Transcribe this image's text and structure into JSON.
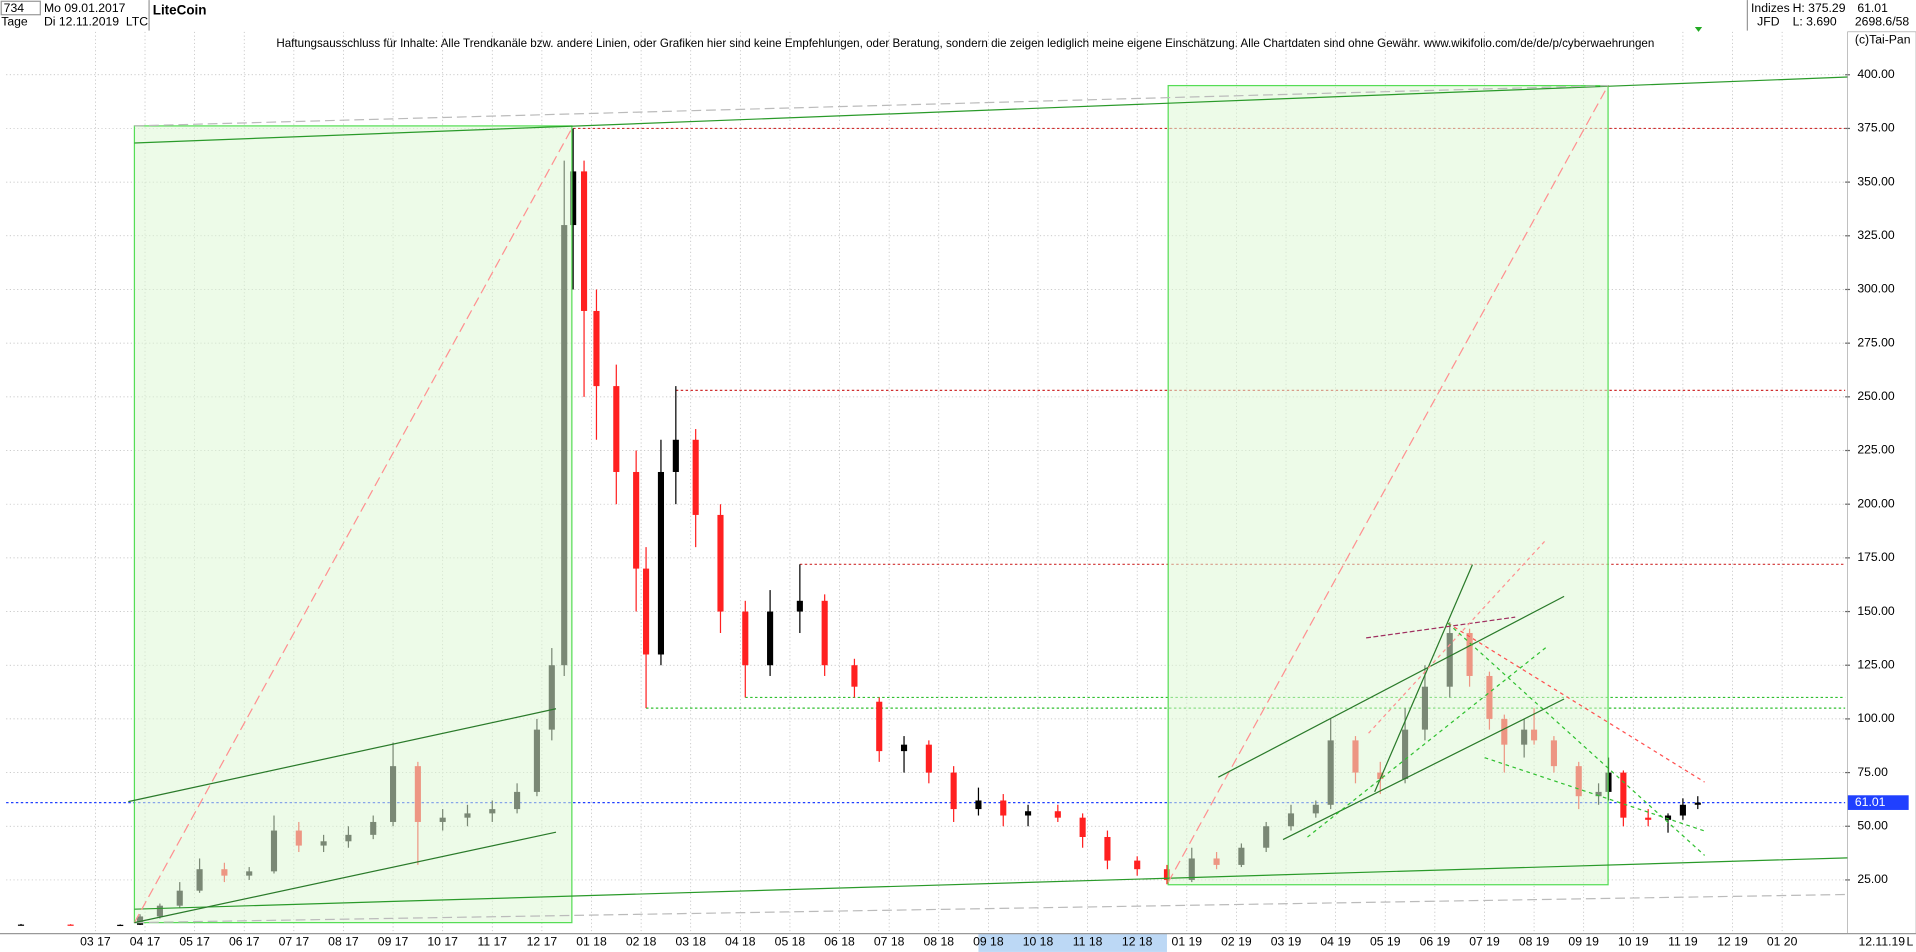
{
  "header": {
    "symbol_count": "734",
    "period": "Tage",
    "start_date": "Mo 09.01.2017",
    "end_date": "Di 12.11.2019",
    "ticker": "LTC",
    "exchange_group": "Indizes",
    "broker": "JFD",
    "high": "H: 375.29",
    "low": "L: 3.690",
    "last": "61.01",
    "counter": "2698.6/58",
    "copyright": "(c)Tai-Pan",
    "current_date": "12.11.19",
    "scale_mode": "L"
  },
  "chart_data": {
    "type": "candlestick",
    "title": "LiteCoin",
    "subtitle": "Haftungsausschluss für Inhalte: Alle Trendkanäle bzw. andere Linien, oder Grafiken hier sind keine Empfehlungen, oder Beratung, sondern die zeigen lediglich meine eigene Einschätzung. Alle Chartdaten sind ohne Gewähr.  www.wikifolio.com/de/de/p/cyberwaehrungen",
    "x": [
      0.5,
      1.5,
      2.5,
      2.9,
      3.3,
      3.7,
      4.1,
      4.6,
      5.1,
      5.6,
      6.1,
      6.6,
      7.1,
      7.6,
      8.0,
      8.5,
      9.0,
      9.5,
      10.0,
      10.5,
      10.9,
      11.2,
      11.45,
      11.63,
      11.85,
      12.1,
      12.5,
      12.9,
      13.1,
      13.4,
      13.7,
      14.1,
      14.6,
      15.1,
      15.6,
      16.2,
      16.7,
      17.3,
      17.8,
      18.3,
      18.8,
      19.3,
      19.8,
      20.3,
      20.8,
      21.4,
      21.9,
      22.4,
      23.0,
      23.6,
      24.1,
      24.6,
      25.1,
      25.6,
      26.1,
      26.6,
      26.9,
      27.4,
      27.9,
      28.4,
      28.8,
      29.3,
      29.7,
      30.1,
      30.4,
      30.8,
      31.0,
      31.4,
      31.9,
      32.3,
      32.5,
      32.8,
      33.3,
      33.7,
      34.0,
      34.3
    ],
    "open": [
      4.2,
      4.2,
      4.0,
      4.1,
      8,
      13,
      20,
      30,
      27,
      29,
      48,
      41,
      43,
      46,
      52,
      78,
      52,
      54,
      56,
      58,
      66,
      95,
      125,
      330,
      355,
      290,
      255,
      215,
      170,
      130,
      215,
      230,
      195,
      150,
      125,
      150,
      155,
      125,
      108,
      85,
      88,
      75,
      58,
      62,
      55,
      57,
      54,
      45,
      34,
      30,
      25,
      35,
      32,
      40,
      50,
      56,
      60,
      90,
      75,
      72,
      95,
      115,
      140,
      120,
      100,
      88,
      95,
      90,
      78,
      64,
      66,
      75,
      54,
      53,
      55,
      60
    ],
    "high": [
      4.5,
      4.4,
      4.3,
      9,
      14,
      24,
      35,
      33,
      31,
      55,
      52,
      46,
      50,
      55,
      89,
      80,
      58,
      60,
      62,
      70,
      100,
      133,
      360,
      375,
      360,
      300,
      265,
      225,
      180,
      230,
      255,
      235,
      200,
      155,
      160,
      172,
      158,
      128,
      110,
      92,
      90,
      78,
      68,
      65,
      60,
      60,
      56,
      48,
      36,
      32,
      40,
      38,
      42,
      52,
      60,
      62,
      100,
      92,
      80,
      105,
      125,
      145,
      142,
      122,
      102,
      100,
      105,
      92,
      80,
      70,
      82,
      76,
      58,
      56,
      63,
      64
    ],
    "low": [
      4.0,
      3.9,
      3.8,
      4.0,
      7,
      12,
      19,
      24,
      25,
      28,
      38,
      38,
      40,
      44,
      50,
      32,
      48,
      50,
      52,
      56,
      64,
      90,
      120,
      300,
      250,
      230,
      200,
      150,
      105,
      125,
      200,
      180,
      140,
      110,
      120,
      140,
      120,
      110,
      80,
      75,
      70,
      52,
      55,
      50,
      50,
      52,
      40,
      30,
      27,
      23,
      24,
      30,
      31,
      38,
      48,
      54,
      58,
      70,
      65,
      70,
      90,
      110,
      115,
      95,
      75,
      82,
      88,
      75,
      58,
      60,
      62,
      50,
      50,
      47,
      53,
      58
    ],
    "close": [
      4.2,
      4.0,
      4.1,
      8,
      13,
      20,
      30,
      27,
      29,
      48,
      41,
      43,
      46,
      52,
      78,
      52,
      54,
      56,
      58,
      66,
      95,
      125,
      330,
      355,
      290,
      255,
      215,
      170,
      130,
      215,
      230,
      195,
      150,
      125,
      150,
      155,
      125,
      115,
      85,
      88,
      75,
      58,
      62,
      55,
      57,
      54,
      45,
      34,
      30,
      25,
      35,
      32,
      40,
      50,
      56,
      60,
      90,
      75,
      72,
      95,
      115,
      140,
      120,
      100,
      88,
      95,
      90,
      78,
      64,
      66,
      75,
      54,
      53,
      55,
      60,
      61.01
    ],
    "up_color": "#000000",
    "down_color": "#ff2020",
    "xlim": [
      0.2,
      37.27
    ],
    "ylim": [
      0,
      420
    ],
    "xticks": [
      {
        "value": 2,
        "label": "03 17"
      },
      {
        "value": 3,
        "label": "04 17"
      },
      {
        "value": 4,
        "label": "05 17"
      },
      {
        "value": 5,
        "label": "06 17"
      },
      {
        "value": 6,
        "label": "07 17"
      },
      {
        "value": 7,
        "label": "08 17"
      },
      {
        "value": 8,
        "label": "09 17"
      },
      {
        "value": 9,
        "label": "10 17"
      },
      {
        "value": 10,
        "label": "11 17"
      },
      {
        "value": 11,
        "label": "12 17"
      },
      {
        "value": 12,
        "label": "01 18"
      },
      {
        "value": 13,
        "label": "02 18"
      },
      {
        "value": 14,
        "label": "03 18"
      },
      {
        "value": 15,
        "label": "04 18"
      },
      {
        "value": 16,
        "label": "05 18"
      },
      {
        "value": 17,
        "label": "06 18"
      },
      {
        "value": 18,
        "label": "07 18"
      },
      {
        "value": 19,
        "label": "08 18"
      },
      {
        "value": 20,
        "label": "09 18"
      },
      {
        "value": 21,
        "label": "10 18"
      },
      {
        "value": 22,
        "label": "11 18"
      },
      {
        "value": 23,
        "label": "12 18"
      },
      {
        "value": 24,
        "label": "01 19"
      },
      {
        "value": 25,
        "label": "02 19"
      },
      {
        "value": 26,
        "label": "03 19"
      },
      {
        "value": 27,
        "label": "04 19"
      },
      {
        "value": 28,
        "label": "05 19"
      },
      {
        "value": 29,
        "label": "06 19"
      },
      {
        "value": 30,
        "label": "07 19"
      },
      {
        "value": 31,
        "label": "08 19"
      },
      {
        "value": 32,
        "label": "09 19"
      },
      {
        "value": 33,
        "label": "10 19"
      },
      {
        "value": 34,
        "label": "11 19"
      },
      {
        "value": 35,
        "label": "12 19"
      },
      {
        "value": 36,
        "label": "01 20"
      }
    ],
    "yticks": [
      {
        "value": 25,
        "label": "25.00"
      },
      {
        "value": 50,
        "label": "50.00"
      },
      {
        "value": 75,
        "label": "75.00"
      },
      {
        "value": 100,
        "label": "100.00"
      },
      {
        "value": 125,
        "label": "125.00"
      },
      {
        "value": 150,
        "label": "150.00"
      },
      {
        "value": 175,
        "label": "175.00"
      },
      {
        "value": 200,
        "label": "200.00"
      },
      {
        "value": 225,
        "label": "225.00"
      },
      {
        "value": 250,
        "label": "250.00"
      },
      {
        "value": 275,
        "label": "275.00"
      },
      {
        "value": 300,
        "label": "300.00"
      },
      {
        "value": 325,
        "label": "325.00"
      },
      {
        "value": 350,
        "label": "350.00"
      },
      {
        "value": 375,
        "label": "375.00"
      },
      {
        "value": 400,
        "label": "400.00"
      }
    ],
    "grid": true,
    "highlight_range": [
      19.8,
      23.6
    ],
    "reference_lines": [
      {
        "value": 375,
        "from": 11.63,
        "color": "#d03030"
      },
      {
        "value": 253,
        "from": 13.7,
        "color": "#d03030"
      },
      {
        "value": 172,
        "from": 16.2,
        "color": "#d03030"
      },
      {
        "value": 110,
        "from": 15.1,
        "color": "#30c030"
      },
      {
        "value": 105,
        "from": 13.1,
        "color": "#30c030"
      },
      {
        "value": 61.01,
        "from": 0.2,
        "color": "#2040ff",
        "label": "61.01"
      }
    ]
  }
}
